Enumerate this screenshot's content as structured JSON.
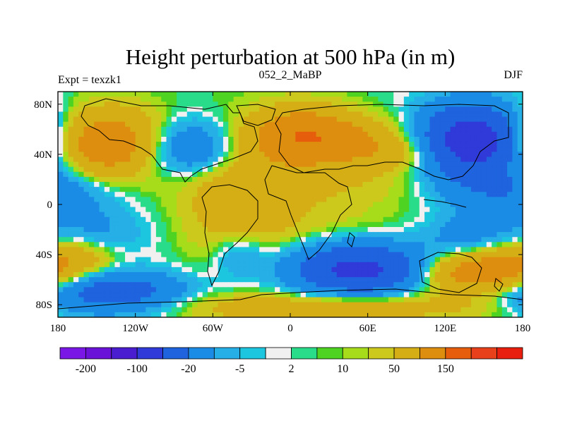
{
  "chart_data": {
    "type": "heatmap",
    "title": "Height perturbation at 500 hPa (in m)",
    "left_label": "Expt = texzk1",
    "center_label": "052_2_MaBP",
    "right_label": "DJF",
    "xlabel": "",
    "ylabel": "",
    "x_range": [
      -180,
      180
    ],
    "y_range": [
      -90,
      90
    ],
    "x_ticks": [
      {
        "value": -180,
        "label": "180"
      },
      {
        "value": -120,
        "label": "120W"
      },
      {
        "value": -60,
        "label": "60W"
      },
      {
        "value": 0,
        "label": "0"
      },
      {
        "value": 60,
        "label": "60E"
      },
      {
        "value": 120,
        "label": "120E"
      },
      {
        "value": 180,
        "label": "180"
      }
    ],
    "y_ticks": [
      {
        "value": 80,
        "label": "80N"
      },
      {
        "value": 40,
        "label": "40N"
      },
      {
        "value": 0,
        "label": "0"
      },
      {
        "value": -40,
        "label": "40S"
      },
      {
        "value": -80,
        "label": "80S"
      }
    ],
    "colorbar": {
      "colors": [
        "#7a17e6",
        "#6a12d8",
        "#4a1ed0",
        "#2f3ad8",
        "#1f63df",
        "#1b8ce6",
        "#25afe6",
        "#1cc6df",
        "#f0f0f0",
        "#28dc8a",
        "#4ed322",
        "#a6dc1a",
        "#ccc81c",
        "#d4ae14",
        "#de8e0e",
        "#e65e0c",
        "#e8401a",
        "#e81e0e"
      ],
      "labels": [
        {
          "index": 1,
          "text": "-200"
        },
        {
          "index": 3,
          "text": "-100"
        },
        {
          "index": 5,
          "text": "-20"
        },
        {
          "index": 7,
          "text": "-5"
        },
        {
          "index": 9,
          "text": "2"
        },
        {
          "index": 11,
          "text": "10"
        },
        {
          "index": 13,
          "text": "50"
        },
        {
          "index": 15,
          "text": "150"
        }
      ]
    },
    "features": [
      {
        "lon": -138,
        "lat": 48,
        "amp": 95,
        "rlon": 34,
        "rlat": 19
      },
      {
        "lon": -80,
        "lat": 45,
        "amp": -70,
        "rlon": 32,
        "rlat": 17
      },
      {
        "lon": -40,
        "lat": 5,
        "amp": 35,
        "rlon": 30,
        "rlat": 40
      },
      {
        "lon": 25,
        "lat": 50,
        "amp": 65,
        "rlon": 45,
        "rlat": 14
      },
      {
        "lon": 10,
        "lat": 60,
        "amp": 45,
        "rlon": 25,
        "rlat": 15
      },
      {
        "lon": 95,
        "lat": 40,
        "amp": 25,
        "rlon": 30,
        "rlat": 10
      },
      {
        "lon": 140,
        "lat": 50,
        "amp": -150,
        "rlon": 28,
        "rlat": 20
      },
      {
        "lon": 165,
        "lat": 10,
        "amp": -40,
        "rlon": 30,
        "rlat": 15
      },
      {
        "lon": 10,
        "lat": 18,
        "amp": 20,
        "rlon": 60,
        "rlat": 12
      },
      {
        "lon": 20,
        "lat": -10,
        "amp": 12,
        "rlon": 50,
        "rlat": 14
      },
      {
        "lon": -150,
        "lat": -25,
        "amp": -25,
        "rlon": 28,
        "rlat": 14
      },
      {
        "lon": -170,
        "lat": -42,
        "amp": 40,
        "rlon": 25,
        "rlat": 12
      },
      {
        "lon": -140,
        "lat": -70,
        "amp": -80,
        "rlon": 40,
        "rlat": 12
      },
      {
        "lon": -40,
        "lat": -40,
        "amp": -30,
        "rlon": 15,
        "rlat": 14
      },
      {
        "lon": 55,
        "lat": -52,
        "amp": -120,
        "rlon": 38,
        "rlat": 14
      },
      {
        "lon": 145,
        "lat": -55,
        "amp": 85,
        "rlon": 35,
        "rlat": 12
      },
      {
        "lon": 140,
        "lat": -25,
        "amp": -30,
        "rlon": 25,
        "rlat": 12
      },
      {
        "lon": 30,
        "lat": -82,
        "amp": 40,
        "rlon": 90,
        "rlat": 8
      },
      {
        "lon": -150,
        "lat": 10,
        "amp": -10,
        "rlon": 25,
        "rlat": 15
      }
    ]
  }
}
